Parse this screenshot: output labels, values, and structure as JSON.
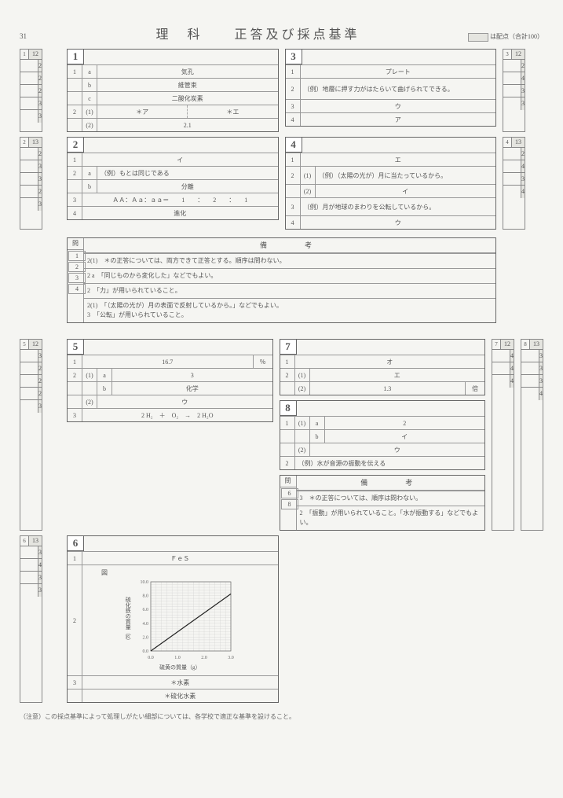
{
  "page_number": "31",
  "title_subject": "理　科",
  "title_main": "正答及び採点基準",
  "legend_label": "は配点（合計100）",
  "scoreboxes": {
    "s1": {
      "corner": "1",
      "total": "12",
      "rows": [
        "2",
        "2",
        "2",
        "3",
        "3"
      ]
    },
    "s2": {
      "corner": "2",
      "total": "13",
      "rows": [
        "2",
        "3",
        "3",
        "2",
        "3"
      ]
    },
    "s3": {
      "corner": "3",
      "total": "12",
      "rows": [
        "2",
        "4",
        "3",
        "3"
      ]
    },
    "s4": {
      "corner": "4",
      "total": "13",
      "rows": [
        "2",
        "4",
        "3",
        "4"
      ]
    },
    "s5": {
      "corner": "5",
      "total": "12",
      "rows": [
        "3",
        "2",
        "2",
        "2",
        "3"
      ]
    },
    "s6": {
      "corner": "6",
      "total": "13",
      "rows": [
        "3",
        "4",
        "3",
        "3"
      ]
    },
    "s7": {
      "corner": "7",
      "total": "12",
      "rows": [
        "4",
        "4",
        "4"
      ]
    },
    "s8": {
      "corner": "8",
      "total": "13",
      "rows": [
        "3",
        "3",
        "3",
        "4"
      ]
    }
  },
  "q1": {
    "num": "1",
    "r1a_sub": "a",
    "r1a": "気孔",
    "r1b_sub": "b",
    "r1b": "維管束",
    "r1c_sub": "c",
    "r1c": "二酸化炭素",
    "r2_1_lab": "(1)",
    "r2_1a": "＊ア",
    "r2_1b": "＊エ",
    "r2_2_lab": "(2)",
    "r2_2": "2.1"
  },
  "q2": {
    "num": "2",
    "r1": "イ",
    "r2a_lab": "a",
    "r2a": "（例）もとは同じである",
    "r2b_lab": "b",
    "r2b": "分離",
    "r3": "ＡＡ：Ａａ：ａａ＝　　1　　：　　2　　：　　1",
    "r4": "進化"
  },
  "q3": {
    "num": "3",
    "r1": "プレート",
    "r2": "（例）地層に押す力がはたらいて曲げられてできる。",
    "r3": "ウ",
    "r4": "ア"
  },
  "q4": {
    "num": "4",
    "r1": "エ",
    "r2_1_lab": "(1)",
    "r2_1": "（例）（太陽の光が）月に当たっているから。",
    "r2_2_lab": "(2)",
    "r2_2": "イ",
    "r3": "（例）月が地球のまわりを公転しているから。",
    "r4": "ウ"
  },
  "q5": {
    "num": "5",
    "r1": "16.7",
    "r1_unit": "％",
    "r2_1a_lab": "a",
    "r2_1a": "3",
    "r2_1b_lab": "b",
    "r2_1b": "化学",
    "r2_2_lab": "(2)",
    "r2_2": "ウ",
    "r3": "2 H₂　＋　O₂　→　2 H₂O"
  },
  "q6": {
    "num": "6",
    "r1": "ＦｅＳ",
    "chart_title": "図",
    "chart_ylabel": "硫化鉄の質量（g）",
    "chart_xlabel": "硫黄の質量（g）",
    "chart_ymax": 10.0,
    "chart_ymin": 0,
    "chart_ystep": 2.0,
    "chart_xmax": 3.0,
    "chart_xmin": 0,
    "chart_xstep": 1.0,
    "chart_line_from": [
      0,
      0
    ],
    "chart_line_to": [
      3.0,
      8.25
    ],
    "chart_line_color": "#222",
    "r3a": "＊水素",
    "r3b": "＊硫化水素"
  },
  "q7": {
    "num": "7",
    "r1": "オ",
    "r2_1_lab": "(1)",
    "r2_1": "エ",
    "r2_2_lab": "(2)",
    "r2_2": "1.3",
    "r2_2_unit": "倍"
  },
  "q8": {
    "num": "8",
    "r1a_lab": "a",
    "r1a": "2",
    "r1b_lab": "b",
    "r1b": "イ",
    "r1_2_lab": "(2)",
    "r1_2": "ウ",
    "r2": "（例）水が音源の振動を伝える"
  },
  "notes_top": {
    "q_header": "問",
    "title": "備　　考",
    "items": [
      {
        "q": "1",
        "text": "2(1)　＊の正答については、両方できて正答とする。順序は問わない。"
      },
      {
        "q": "2",
        "text": "2 a　「同じものから変化した」などでもよい。"
      },
      {
        "q": "3",
        "text": "2　「力」が用いられていること。"
      },
      {
        "q": "4",
        "text": "2(1)　「（太陽の光が）月の表面で反射しているから。」などでもよい。\n3　「公転」が用いられていること。"
      }
    ]
  },
  "notes_bottom": {
    "q_header": "問",
    "title": "備　　考",
    "items": [
      {
        "q": "6",
        "text": "3　＊の正答については、順序は問わない。"
      },
      {
        "q": "8",
        "text": "2　「振動」が用いられていること。「水が振動する」などでもよい。"
      }
    ]
  },
  "footer": "（注意）この採点基準によって処理しがたい細部については、各学校で適正な基準を設けること。"
}
